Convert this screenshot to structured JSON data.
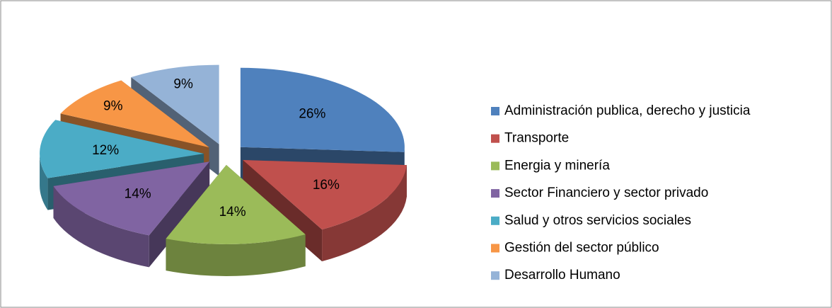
{
  "chart_data": {
    "type": "pie",
    "categories": [
      "Administración publica, derecho y justicia",
      "Transporte",
      "Energia y minería",
      "Sector Financiero y sector privado",
      "Salud y otros servicios sociales",
      "Gestión del sector público",
      "Desarrollo Humano"
    ],
    "values": [
      26,
      16,
      14,
      14,
      12,
      9,
      9
    ],
    "value_labels": [
      "26%",
      "16%",
      "14%",
      "14%",
      "12%",
      "9%",
      "9%"
    ],
    "colors": [
      "#4f81bd",
      "#c0504d",
      "#9bbb59",
      "#8064a2",
      "#4bacc6",
      "#f79646",
      "#95b3d7"
    ],
    "legend": "right"
  }
}
